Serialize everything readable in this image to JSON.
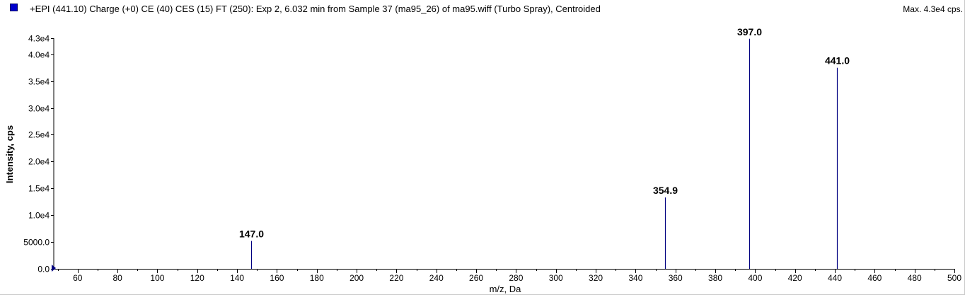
{
  "header": {
    "title": "+EPI (441.10) Charge (+0) CE (40) CES (15) FT (250): Exp 2, 6.032 min from Sample 37 (ma95_26) of ma95.wiff (Turbo Spray), Centroided",
    "max_label": "Max. 4.3e4 cps."
  },
  "colors": {
    "peak": "#000080",
    "axis": "#000000",
    "swatch": "#0000cc",
    "cursor": "#000080"
  },
  "chart_data": {
    "type": "bar",
    "title": "+EPI (441.10) Charge (+0) CE (40) CES (15) FT (250): Exp 2, 6.032 min from Sample 37 (ma95_26) of ma95.wiff (Turbo Spray), Centroided",
    "xlabel": "m/z, Da",
    "ylabel": "Intensity, cps",
    "xlim": [
      48,
      500
    ],
    "ylim": [
      0,
      43000
    ],
    "x_ticks": [
      60,
      80,
      100,
      120,
      140,
      160,
      180,
      200,
      220,
      240,
      260,
      280,
      300,
      320,
      340,
      360,
      380,
      400,
      420,
      440,
      460,
      480,
      500
    ],
    "y_ticks": [
      {
        "value": 0,
        "label": "0.0"
      },
      {
        "value": 5000,
        "label": "5000.0"
      },
      {
        "value": 10000,
        "label": "1.0e4"
      },
      {
        "value": 15000,
        "label": "1.5e4"
      },
      {
        "value": 20000,
        "label": "2.0e4"
      },
      {
        "value": 25000,
        "label": "2.5e4"
      },
      {
        "value": 30000,
        "label": "3.0e4"
      },
      {
        "value": 35000,
        "label": "3.5e4"
      },
      {
        "value": 40000,
        "label": "4.0e4"
      },
      {
        "value": 43000,
        "label": "4.3e4"
      }
    ],
    "peaks": [
      {
        "x": 147.0,
        "y": 5200,
        "label": "147.0"
      },
      {
        "x": 354.9,
        "y": 13300,
        "label": "354.9"
      },
      {
        "x": 397.0,
        "y": 42900,
        "label": "397.0"
      },
      {
        "x": 441.0,
        "y": 37500,
        "label": "441.0"
      }
    ],
    "grid": false,
    "legend": "top-left"
  }
}
